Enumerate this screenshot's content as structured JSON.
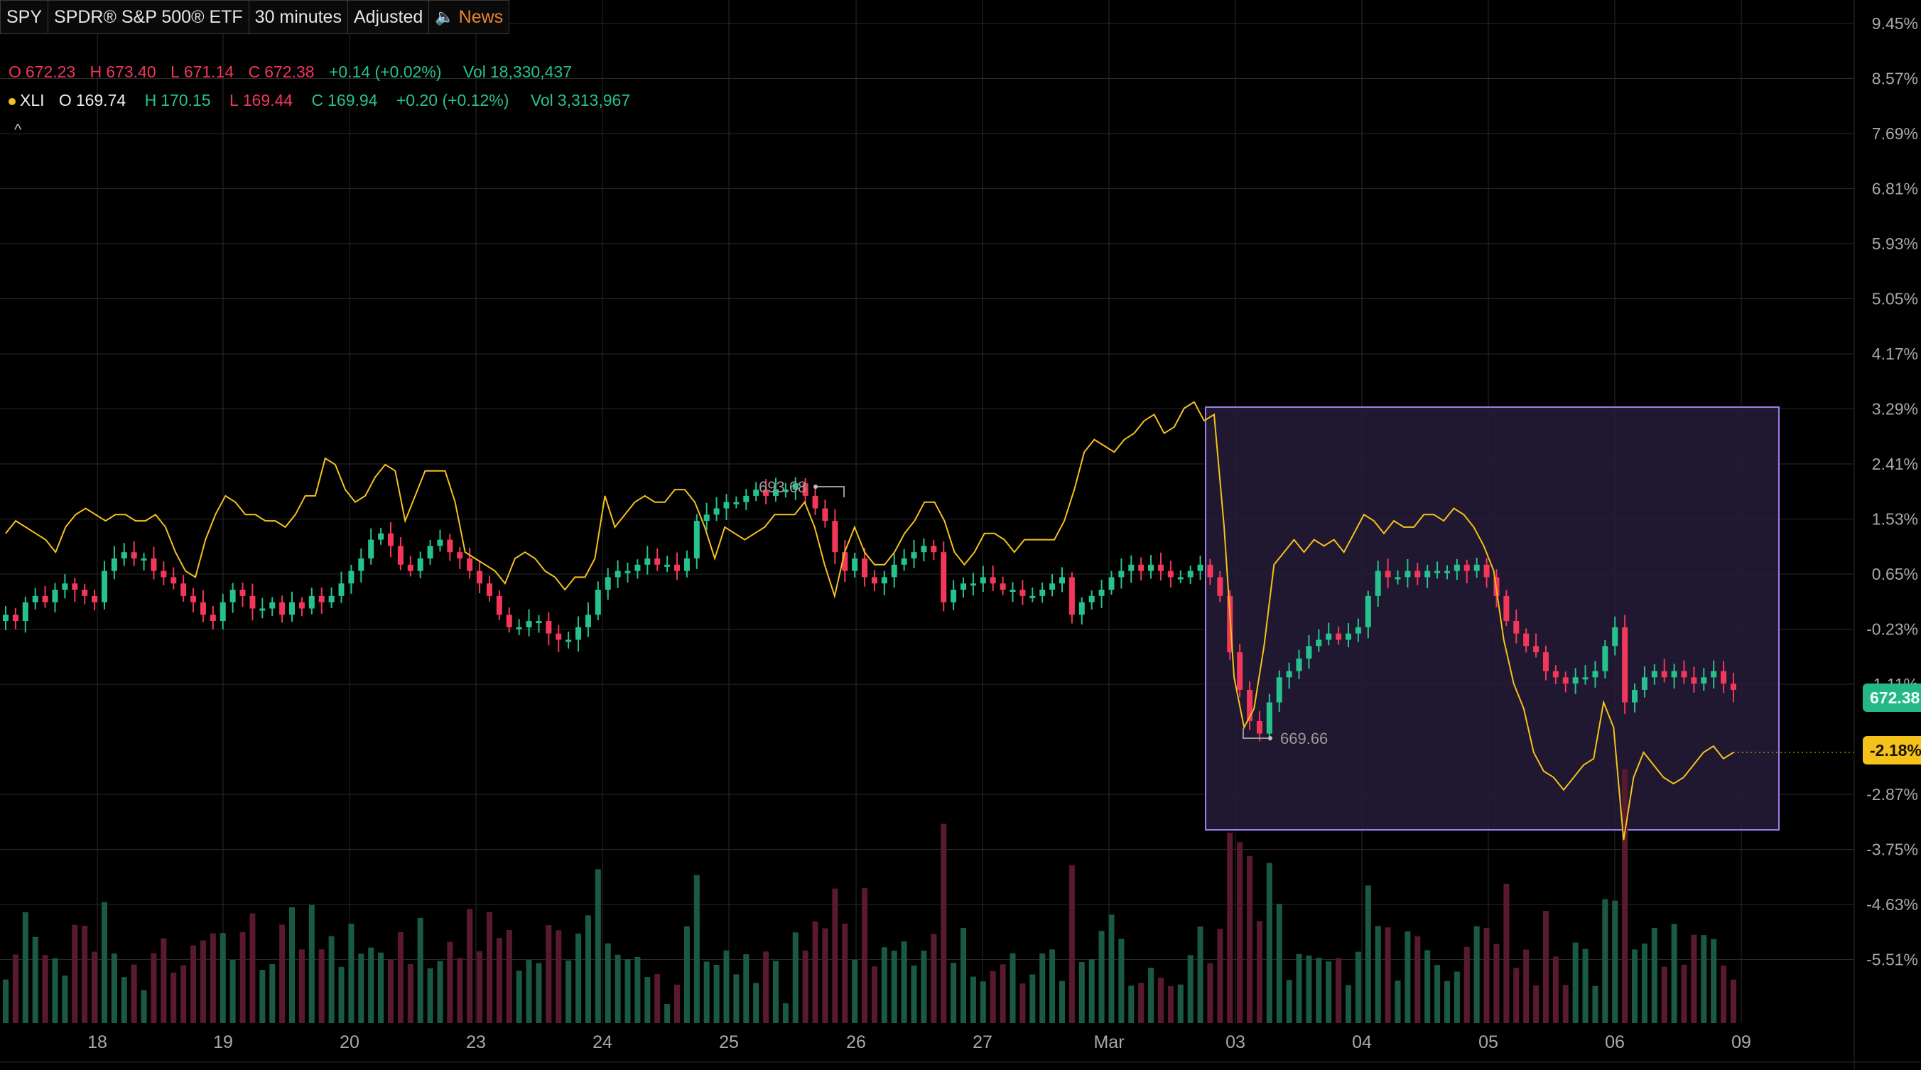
{
  "header": {
    "symbol": "SPY",
    "description": "SPDR® S&P 500® ETF",
    "interval": "30 minutes",
    "adjusted": "Adjusted",
    "news": "News",
    "collapse": "^"
  },
  "spy_ohlc": {
    "o_label": "O",
    "o": "672.23",
    "h_label": "H",
    "h": "673.40",
    "l_label": "L",
    "l": "671.14",
    "c_label": "C",
    "c": "672.38",
    "change": "+0.14 (+0.02%)",
    "vol_label": "Vol",
    "vol": "18,330,437"
  },
  "xli_ohlc": {
    "symbol": "XLI",
    "o_label": "O",
    "o": "169.74",
    "h_label": "H",
    "h": "170.15",
    "l_label": "L",
    "l": "169.44",
    "c_label": "C",
    "c": "169.94",
    "change": "+0.20 (+0.12%)",
    "vol_label": "Vol",
    "vol": "3,313,967"
  },
  "price_tags": {
    "spy": "672.38",
    "xli": "-2.18%"
  },
  "colors": {
    "up": "#26c28e",
    "down": "#f2375a",
    "compare_line": "#f4c21b",
    "grid": "#2a2a2a",
    "axis_text": "#a8a8a8",
    "selection_border": "#9b7fe6",
    "selection_fill": "#2a2040",
    "vol_up": "#1a5a45",
    "vol_down": "#5a1a2e"
  },
  "chart_data": {
    "type": "candlestick",
    "y_axis_labels": [
      "9.45%",
      "8.57%",
      "7.69%",
      "6.81%",
      "5.93%",
      "5.05%",
      "4.17%",
      "3.29%",
      "2.41%",
      "1.53%",
      "0.65%",
      "-0.23%",
      "-1.11%",
      "-2.87%",
      "-3.75%",
      "-4.63%",
      "-5.51%"
    ],
    "x_axis_labels": [
      "18",
      "19",
      "20",
      "23",
      "24",
      "25",
      "26",
      "27",
      "Mar",
      "03",
      "04",
      "05",
      "06",
      "09"
    ],
    "annotations": [
      {
        "label": "693.68",
        "type": "high_marker"
      },
      {
        "label": "669.66",
        "type": "low_marker"
      }
    ],
    "series": [
      {
        "name": "SPY",
        "type": "candlestick",
        "closes_pct": [
          0.0,
          -0.1,
          0.2,
          0.3,
          0.2,
          0.4,
          0.5,
          0.4,
          0.3,
          0.2,
          0.7,
          0.9,
          1.0,
          0.9,
          0.9,
          0.7,
          0.6,
          0.5,
          0.3,
          0.2,
          0.0,
          -0.1,
          0.2,
          0.4,
          0.3,
          0.1,
          0.1,
          0.2,
          0.0,
          0.2,
          0.1,
          0.3,
          0.2,
          0.3,
          0.5,
          0.7,
          0.9,
          1.2,
          1.3,
          1.1,
          0.8,
          0.7,
          0.9,
          1.1,
          1.2,
          1.0,
          0.9,
          0.7,
          0.5,
          0.3,
          0.0,
          -0.2,
          -0.2,
          -0.1,
          -0.1,
          -0.3,
          -0.4,
          -0.4,
          -0.2,
          0.0,
          0.4,
          0.6,
          0.7,
          0.7,
          0.8,
          0.9,
          0.8,
          0.8,
          0.7,
          0.9,
          1.5,
          1.6,
          1.7,
          1.8,
          1.8,
          1.9,
          2.0,
          1.9,
          2.0,
          2.0,
          2.1,
          1.9,
          1.7,
          1.5,
          1.0,
          0.7,
          0.9,
          0.6,
          0.5,
          0.6,
          0.8,
          0.9,
          1.0,
          1.1,
          1.0,
          0.2,
          0.4,
          0.5,
          0.5,
          0.6,
          0.5,
          0.4,
          0.4,
          0.3,
          0.3,
          0.4,
          0.5,
          0.6,
          0.0,
          0.2,
          0.3,
          0.4,
          0.6,
          0.7,
          0.8,
          0.7,
          0.8,
          0.7,
          0.6,
          0.6,
          0.7,
          0.8,
          0.6,
          0.3,
          -0.6,
          -1.2,
          -1.7,
          -1.9,
          -1.4,
          -1.0,
          -0.9,
          -0.7,
          -0.5,
          -0.4,
          -0.3,
          -0.4,
          -0.3,
          -0.2,
          0.3,
          0.7,
          0.6,
          0.6,
          0.7,
          0.6,
          0.7,
          0.7,
          0.7,
          0.8,
          0.7,
          0.8,
          0.6,
          0.3,
          -0.1,
          -0.3,
          -0.5,
          -0.6,
          -0.9,
          -1.0,
          -1.1,
          -1.0,
          -1.0,
          -0.9,
          -0.5,
          -0.2,
          -1.4,
          -1.2,
          -1.0,
          -0.9,
          -1.0,
          -0.9,
          -1.0,
          -1.1,
          -1.0,
          -0.9,
          -1.1,
          -1.2
        ]
      },
      {
        "name": "XLI",
        "type": "line",
        "values_pct": [
          1.3,
          1.5,
          1.4,
          1.3,
          1.2,
          1.0,
          1.4,
          1.6,
          1.7,
          1.6,
          1.5,
          1.6,
          1.6,
          1.5,
          1.5,
          1.6,
          1.4,
          1.0,
          0.7,
          0.6,
          1.2,
          1.6,
          1.9,
          1.8,
          1.6,
          1.6,
          1.5,
          1.5,
          1.4,
          1.6,
          1.9,
          1.9,
          2.5,
          2.4,
          2.0,
          1.8,
          1.9,
          2.2,
          2.4,
          2.3,
          1.5,
          1.9,
          2.3,
          2.3,
          2.3,
          1.8,
          1.0,
          0.9,
          0.8,
          0.7,
          0.5,
          0.9,
          1.0,
          0.9,
          0.7,
          0.6,
          0.4,
          0.6,
          0.6,
          0.9,
          1.9,
          1.4,
          1.6,
          1.8,
          1.9,
          1.8,
          1.8,
          2.0,
          2.0,
          1.8,
          1.4,
          0.9,
          1.4,
          1.3,
          1.2,
          1.3,
          1.4,
          1.6,
          1.6,
          1.6,
          1.8,
          1.4,
          0.8,
          0.3,
          1.0,
          1.4,
          1.0,
          0.8,
          0.8,
          1.0,
          1.3,
          1.5,
          1.8,
          1.8,
          1.5,
          1.0,
          0.8,
          1.0,
          1.3,
          1.3,
          1.2,
          1.0,
          1.2,
          1.2,
          1.2,
          1.2,
          1.5,
          2.0,
          2.6,
          2.8,
          2.7,
          2.6,
          2.8,
          2.9,
          3.1,
          3.2,
          2.9,
          3.0,
          3.3,
          3.4,
          3.1,
          3.2,
          1.4,
          -1.0,
          -1.8,
          -1.5,
          -0.5,
          0.8,
          1.0,
          1.2,
          1.0,
          1.2,
          1.1,
          1.2,
          1.0,
          1.3,
          1.6,
          1.5,
          1.3,
          1.5,
          1.4,
          1.4,
          1.6,
          1.6,
          1.5,
          1.7,
          1.6,
          1.4,
          1.1,
          0.7,
          -0.4,
          -1.1,
          -1.5,
          -2.2,
          -2.5,
          -2.6,
          -2.8,
          -2.6,
          -2.4,
          -2.3,
          -1.4,
          -1.8,
          -3.6,
          -2.6,
          -2.2,
          -2.4,
          -2.6,
          -2.7,
          -2.6,
          -2.4,
          -2.2,
          -2.1,
          -2.3,
          -2.2
        ]
      }
    ]
  }
}
